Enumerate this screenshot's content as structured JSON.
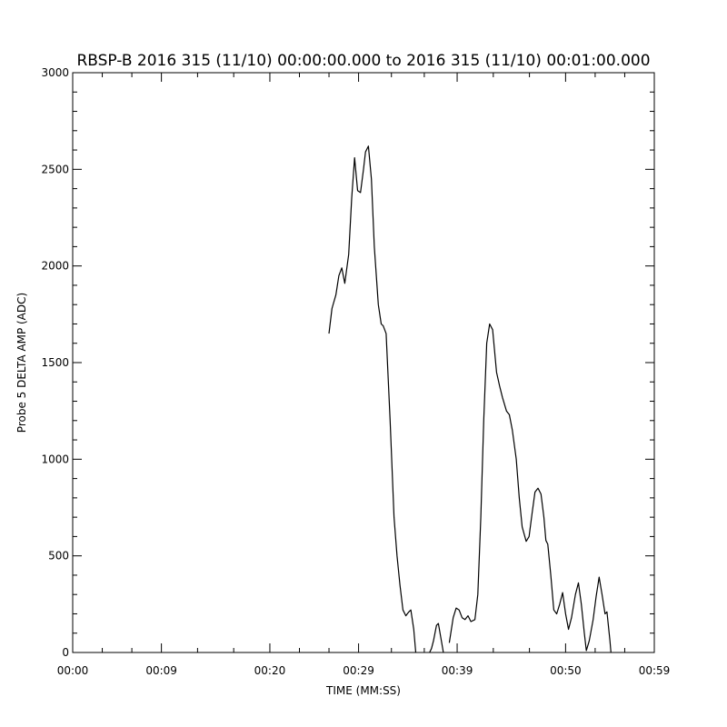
{
  "chart_data": {
    "type": "line",
    "title": "RBSP-B 2016 315 (11/10) 00:00:00.000 to 2016 315 (11/10) 00:01:00.000",
    "xlabel": "TIME (MM:SS)",
    "ylabel": "Probe 5 DELTA AMP (ADC)",
    "xlim": [
      0,
      59
    ],
    "ylim": [
      0,
      3000
    ],
    "x_ticks": [
      0,
      9,
      20,
      29,
      39,
      50,
      59
    ],
    "x_tick_labels": [
      "00:00",
      "00:09",
      "00:20",
      "00:29",
      "00:39",
      "00:50",
      "00:59"
    ],
    "y_ticks": [
      0,
      500,
      1000,
      1500,
      2000,
      2500,
      3000
    ],
    "y_tick_labels": [
      "0",
      "500",
      "1000",
      "1500",
      "2000",
      "2500",
      "3000"
    ],
    "grid": false,
    "line_color": "#000000",
    "series": [
      {
        "segments": [
          [
            [
              26.0,
              1650
            ],
            [
              26.3,
              1780
            ],
            [
              26.7,
              1850
            ],
            [
              27.0,
              1950
            ],
            [
              27.3,
              1990
            ],
            [
              27.6,
              1910
            ],
            [
              28.0,
              2060
            ],
            [
              28.3,
              2350
            ],
            [
              28.6,
              2560
            ],
            [
              28.9,
              2390
            ],
            [
              29.2,
              2380
            ],
            [
              29.5,
              2500
            ],
            [
              29.7,
              2590
            ],
            [
              30.0,
              2620
            ],
            [
              30.3,
              2450
            ],
            [
              30.6,
              2100
            ],
            [
              31.0,
              1800
            ],
            [
              31.3,
              1700
            ],
            [
              31.5,
              1690
            ],
            [
              31.8,
              1650
            ],
            [
              32.2,
              1200
            ],
            [
              32.6,
              700
            ],
            [
              32.9,
              500
            ],
            [
              33.2,
              350
            ],
            [
              33.5,
              220
            ],
            [
              33.8,
              190
            ],
            [
              34.1,
              210
            ],
            [
              34.3,
              220
            ],
            [
              34.6,
              120
            ],
            [
              34.8,
              0
            ]
          ],
          [
            [
              36.2,
              0
            ],
            [
              36.4,
              20
            ],
            [
              36.6,
              60
            ],
            [
              36.9,
              140
            ],
            [
              37.1,
              150
            ],
            [
              37.4,
              60
            ],
            [
              37.6,
              0
            ]
          ],
          [
            [
              38.2,
              50
            ],
            [
              38.6,
              180
            ],
            [
              38.9,
              230
            ],
            [
              39.2,
              220
            ],
            [
              39.5,
              180
            ],
            [
              39.8,
              170
            ],
            [
              40.1,
              190
            ],
            [
              40.4,
              160
            ],
            [
              40.8,
              170
            ],
            [
              41.1,
              300
            ],
            [
              41.4,
              700
            ],
            [
              41.7,
              1200
            ],
            [
              42.0,
              1600
            ],
            [
              42.3,
              1700
            ],
            [
              42.6,
              1670
            ],
            [
              43.0,
              1450
            ],
            [
              43.3,
              1380
            ],
            [
              43.6,
              1320
            ],
            [
              44.0,
              1250
            ],
            [
              44.3,
              1230
            ],
            [
              44.6,
              1150
            ],
            [
              45.0,
              1000
            ],
            [
              45.3,
              800
            ],
            [
              45.6,
              650
            ],
            [
              46.0,
              575
            ],
            [
              46.3,
              600
            ],
            [
              46.6,
              720
            ],
            [
              46.9,
              830
            ],
            [
              47.2,
              850
            ],
            [
              47.5,
              820
            ],
            [
              47.8,
              700
            ],
            [
              48.0,
              580
            ],
            [
              48.2,
              560
            ],
            [
              48.5,
              400
            ],
            [
              48.8,
              220
            ],
            [
              49.1,
              200
            ],
            [
              49.4,
              250
            ],
            [
              49.7,
              310
            ],
            [
              50.0,
              200
            ],
            [
              50.3,
              120
            ],
            [
              50.6,
              180
            ],
            [
              51.0,
              300
            ],
            [
              51.3,
              360
            ],
            [
              51.6,
              250
            ],
            [
              51.9,
              100
            ],
            [
              52.1,
              10
            ],
            [
              52.4,
              60
            ],
            [
              52.8,
              170
            ],
            [
              53.1,
              290
            ],
            [
              53.4,
              390
            ],
            [
              53.7,
              300
            ],
            [
              54.0,
              200
            ],
            [
              54.2,
              210
            ],
            [
              54.5,
              60
            ],
            [
              54.6,
              0
            ]
          ]
        ]
      }
    ]
  }
}
